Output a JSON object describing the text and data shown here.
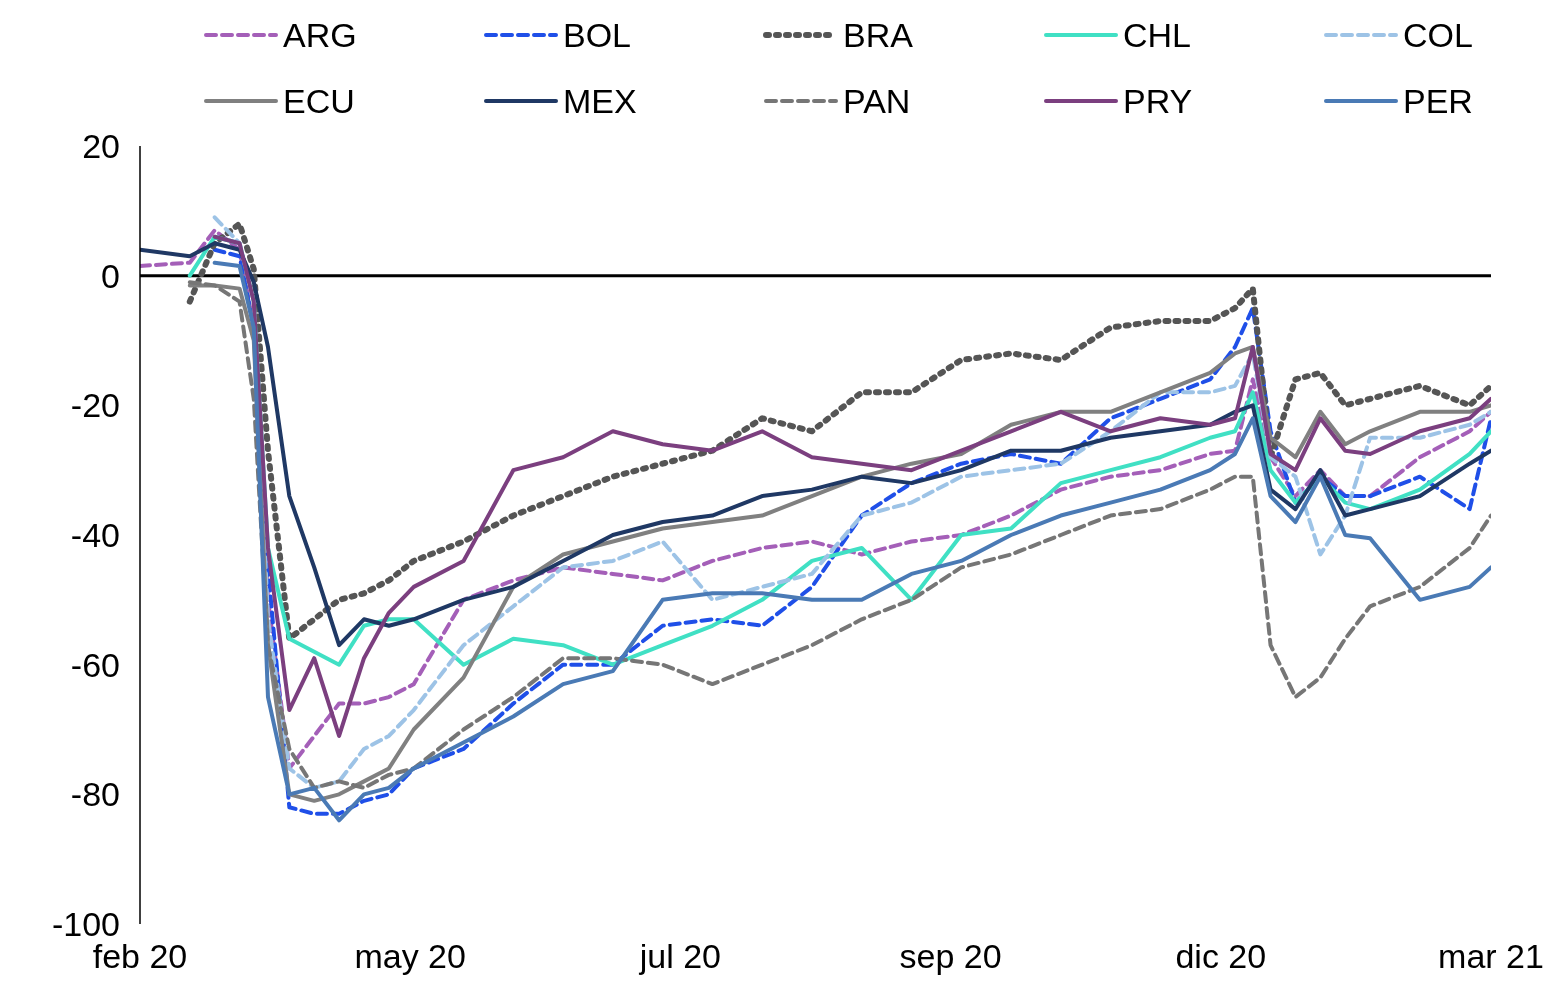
{
  "chart_data": {
    "type": "line",
    "legend": "top",
    "grid": false,
    "x": [
      "2020-02-15",
      "2020-02-29",
      "2020-03-07",
      "2020-03-14",
      "2020-03-18",
      "2020-03-22",
      "2020-03-28",
      "2020-04-04",
      "2020-04-11",
      "2020-04-18",
      "2020-04-25",
      "2020-05-02",
      "2020-05-16",
      "2020-05-30",
      "2020-06-13",
      "2020-06-27",
      "2020-07-11",
      "2020-07-25",
      "2020-08-08",
      "2020-08-22",
      "2020-09-05",
      "2020-09-19",
      "2020-10-03",
      "2020-10-17",
      "2020-10-31",
      "2020-11-14",
      "2020-11-28",
      "2020-12-12",
      "2020-12-19",
      "2020-12-24",
      "2020-12-29",
      "2021-01-05",
      "2021-01-12",
      "2021-01-19",
      "2021-01-26",
      "2021-02-09",
      "2021-02-23",
      "2021-03-01"
    ],
    "xlim": [
      "2020-02-15",
      "2021-03-01"
    ],
    "xticks": [
      {
        "value": "2020-02-15",
        "label": "feb 20"
      },
      {
        "value": "2020-05-01",
        "label": "may 20"
      },
      {
        "value": "2020-07-16",
        "label": "jul 20"
      },
      {
        "value": "2020-09-30",
        "label": "sep 20"
      },
      {
        "value": "2020-12-15",
        "label": "dic 20"
      },
      {
        "value": "2021-03-01",
        "label": "mar 21"
      }
    ],
    "ylim": [
      -100,
      20
    ],
    "yticks": [
      -100,
      -80,
      -60,
      -40,
      -20,
      0,
      20
    ],
    "ref_lines": [
      {
        "axis": "y",
        "value": 0,
        "color": "#000000"
      }
    ],
    "series": [
      {
        "name": "ARG",
        "color": "#a45fb8",
        "line_style": "dashed",
        "values": [
          1.5,
          2,
          7,
          4,
          -8,
          -50,
          -76,
          -71,
          -66,
          -66,
          -65,
          -63,
          -50,
          -47,
          -45,
          -46,
          -47,
          -44,
          -42,
          -41,
          -43,
          -41,
          -40,
          -37,
          -33,
          -31,
          -30,
          -27.5,
          -27,
          -16,
          -28,
          -34,
          -30,
          -34,
          -34,
          -28,
          -24,
          -21
        ]
      },
      {
        "name": "BOL",
        "color": "#1f4fe8",
        "line_style": "dashed",
        "values": [
          null,
          null,
          4,
          3,
          -8,
          -45,
          -82,
          -83,
          -83,
          -81,
          -80,
          -76,
          -73,
          -66,
          -60,
          -60,
          -54,
          -53,
          -54,
          -48,
          -37,
          -32,
          -29,
          -27.5,
          -29,
          -22,
          -19,
          -16,
          -11,
          -5,
          -24,
          -35,
          -31,
          -34,
          -34,
          -31,
          -36,
          -22
        ]
      },
      {
        "name": "BRA",
        "color": "#555555",
        "line_style": "dotted",
        "values": [
          null,
          -4,
          5,
          8,
          1,
          -27,
          -56,
          -53,
          -50,
          -49,
          -47,
          -44,
          -41,
          -37,
          -34,
          -31,
          -29,
          -27,
          -22,
          -24,
          -18,
          -18,
          -13,
          -12,
          -13,
          -8,
          -7,
          -7,
          -5,
          -2,
          -28,
          -16,
          -15,
          -20,
          -19,
          -17,
          -20,
          -17
        ]
      },
      {
        "name": "CHL",
        "color": "#40e0c4",
        "line_style": "solid",
        "values": [
          null,
          0,
          6,
          5,
          -4,
          -42,
          -56,
          -58,
          -60,
          -54,
          -53,
          -53,
          -60,
          -56,
          -57,
          -60,
          -57,
          -54,
          -50,
          -44,
          -42,
          -50,
          -40,
          -39,
          -32,
          -30,
          -28,
          -25,
          -24,
          -18,
          -30,
          -35,
          -31,
          -35,
          -36,
          -33,
          -27.5,
          -24
        ]
      },
      {
        "name": "COL",
        "color": "#9dc3e6",
        "line_style": "dashed",
        "values": [
          null,
          null,
          9,
          5,
          -4,
          -53,
          -76,
          -79,
          -78,
          -73,
          -71,
          -67,
          -57,
          -51,
          -45,
          -44,
          -41,
          -50,
          -48,
          -46,
          -37,
          -35,
          -31,
          -30,
          -29,
          -24,
          -18,
          -18,
          -17,
          -12,
          -28,
          -31,
          -43,
          -37,
          -25,
          -25,
          -23,
          -21
        ]
      },
      {
        "name": "ECU",
        "color": "#808080",
        "line_style": "solid",
        "values": [
          null,
          -1.5,
          -1.5,
          -2,
          -10,
          -57,
          -80,
          -81,
          -80,
          -78,
          -76,
          -70,
          -62,
          -48,
          -43,
          -41,
          -39,
          -38,
          -37,
          -34,
          -31,
          -29,
          -27.5,
          -23,
          -21,
          -21,
          -18,
          -15,
          -12,
          -11,
          -25,
          -28,
          -21,
          -26,
          -24,
          -21,
          -21,
          -20
        ]
      },
      {
        "name": "MEX",
        "color": "#1f3864",
        "line_style": "solid",
        "values": [
          4,
          3,
          5,
          4,
          -1,
          -11,
          -34,
          -45,
          -57,
          -53,
          -54,
          -53,
          -50,
          -48,
          -44,
          -40,
          -38,
          -37,
          -34,
          -33,
          -31,
          -32,
          -30,
          -27,
          -27,
          -25,
          -24,
          -23,
          -21,
          -20,
          -33,
          -36,
          -30,
          -37,
          -36,
          -34,
          -29,
          -27
        ]
      },
      {
        "name": "PAN",
        "color": "#767676",
        "line_style": "dashed",
        "values": [
          null,
          -1,
          -1.5,
          -4,
          -19,
          -57,
          -73,
          -79,
          -78,
          -79,
          -77,
          -76,
          -70,
          -65,
          -59,
          -59,
          -60,
          -63,
          -60,
          -57,
          -53,
          -50,
          -45,
          -43,
          -40,
          -37,
          -36,
          -33,
          -31,
          -31,
          -57,
          -65,
          -62,
          -56,
          -51,
          -48,
          -42,
          -37
        ]
      },
      {
        "name": "PRY",
        "color": "#7b3f7f",
        "line_style": "solid",
        "values": [
          null,
          null,
          6,
          5,
          -4,
          -42,
          -67,
          -59,
          -71,
          -59,
          -52,
          -48,
          -44,
          -30,
          -28,
          -24,
          -26,
          -27,
          -24,
          -28,
          -29,
          -30,
          -27,
          -24,
          -21,
          -24,
          -22,
          -23,
          -22,
          -11,
          -27.5,
          -30,
          -22,
          -27,
          -27.5,
          -24,
          -22,
          -19
        ]
      },
      {
        "name": "PER",
        "color": "#4a7ab5",
        "line_style": "solid",
        "values": [
          null,
          null,
          2,
          1.5,
          -8,
          -65,
          -80,
          -79,
          -84,
          -80,
          -79,
          -76,
          -72,
          -68,
          -63,
          -61,
          -50,
          -49,
          -49,
          -50,
          -50,
          -46,
          -44,
          -40,
          -37,
          -35,
          -33,
          -30,
          -27.5,
          -22,
          -34,
          -38,
          -31,
          -40,
          -40.5,
          -50,
          -48,
          -45
        ]
      }
    ]
  }
}
